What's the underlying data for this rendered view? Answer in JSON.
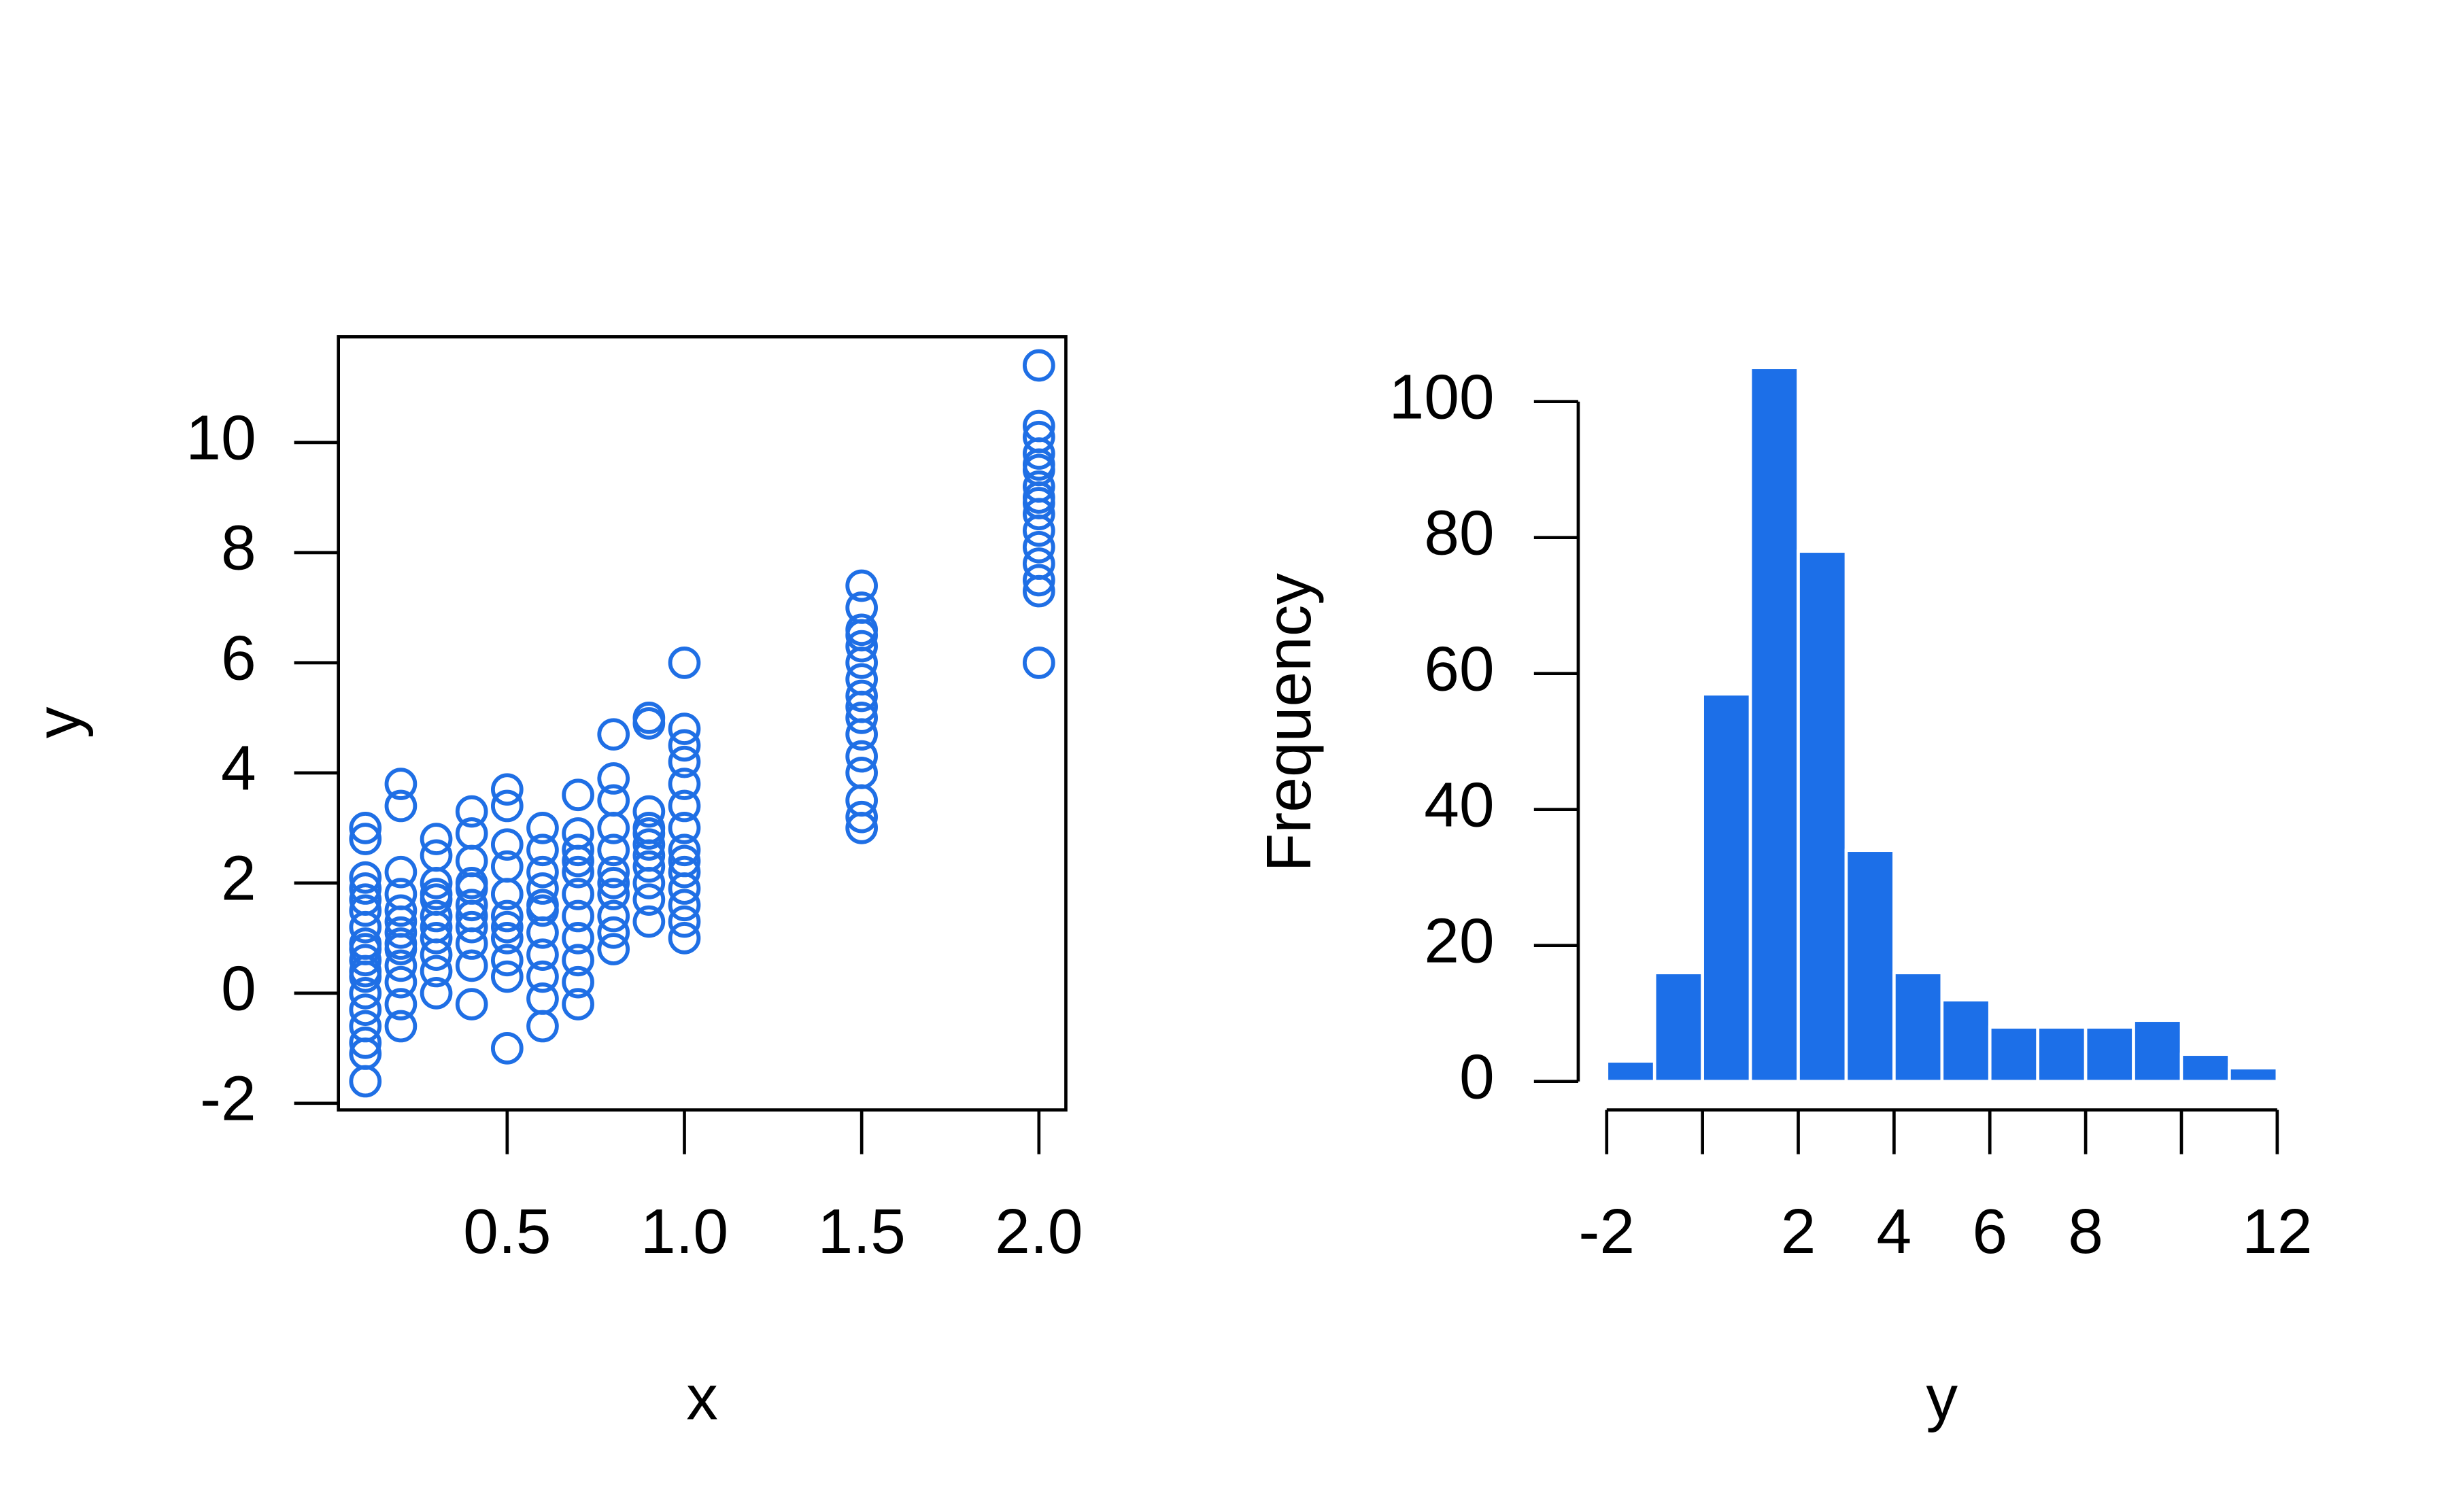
{
  "chart_data": [
    {
      "type": "scatter",
      "x_label": "x",
      "y_label": "y",
      "color": "#1f6fe5",
      "x": [
        0.1,
        0.1,
        0.1,
        0.1,
        0.1,
        0.1,
        0.1,
        0.1,
        0.1,
        0.1,
        0.1,
        0.1,
        0.1,
        0.1,
        0.1,
        0.1,
        0.1,
        0.1,
        0.2,
        0.2,
        0.2,
        0.2,
        0.2,
        0.2,
        0.2,
        0.2,
        0.2,
        0.2,
        0.2,
        0.2,
        0.2,
        0.3,
        0.3,
        0.3,
        0.3,
        0.3,
        0.3,
        0.3,
        0.3,
        0.3,
        0.3,
        0.3,
        0.4,
        0.4,
        0.4,
        0.4,
        0.4,
        0.4,
        0.4,
        0.4,
        0.4,
        0.4,
        0.4,
        0.5,
        0.5,
        0.5,
        0.5,
        0.5,
        0.5,
        0.5,
        0.5,
        0.5,
        0.5,
        0.5,
        0.6,
        0.6,
        0.6,
        0.6,
        0.6,
        0.6,
        0.6,
        0.6,
        0.6,
        0.6,
        0.6,
        0.7,
        0.7,
        0.7,
        0.7,
        0.7,
        0.7,
        0.7,
        0.7,
        0.7,
        0.7,
        0.7,
        0.8,
        0.8,
        0.8,
        0.8,
        0.8,
        0.8,
        0.8,
        0.8,
        0.8,
        0.8,
        0.8,
        0.9,
        0.9,
        0.9,
        0.9,
        0.9,
        0.9,
        0.9,
        0.9,
        0.9,
        0.9,
        0.9,
        1.0,
        1.0,
        1.0,
        1.0,
        1.0,
        1.0,
        1.0,
        1.0,
        1.0,
        1.0,
        1.0,
        1.0,
        1.0,
        1.0,
        1.5,
        1.5,
        1.5,
        1.5,
        1.5,
        1.5,
        1.5,
        1.5,
        1.5,
        1.5,
        1.5,
        1.5,
        1.5,
        1.5,
        1.5,
        1.5,
        2.0,
        2.0,
        2.0,
        2.0,
        2.0,
        2.0,
        2.0,
        2.0,
        2.0,
        2.0,
        2.0,
        2.0,
        2.0,
        2.0,
        2.0,
        2.0
      ],
      "values": [
        3.0,
        2.8,
        2.1,
        1.9,
        1.5,
        1.2,
        0.9,
        0.6,
        0.3,
        0.0,
        -0.3,
        -0.6,
        -0.9,
        -1.1,
        -1.6,
        1.7,
        0.8,
        0.4,
        3.8,
        3.4,
        2.2,
        1.8,
        1.5,
        1.1,
        0.8,
        0.5,
        0.2,
        -0.2,
        -0.6,
        1.3,
        0.9,
        2.8,
        2.5,
        2.0,
        1.7,
        1.4,
        1.0,
        0.7,
        0.4,
        0.0,
        1.2,
        1.8,
        3.3,
        2.9,
        2.4,
        2.0,
        1.6,
        1.2,
        0.9,
        0.5,
        -0.2,
        1.4,
        1.9,
        3.7,
        3.4,
        2.7,
        2.3,
        1.8,
        1.4,
        1.0,
        0.6,
        0.3,
        -1.0,
        1.2,
        3.0,
        2.6,
        2.2,
        1.9,
        1.5,
        1.1,
        0.7,
        0.3,
        -0.1,
        -0.6,
        1.6,
        3.6,
        2.9,
        2.6,
        2.2,
        1.8,
        1.4,
        1.0,
        0.6,
        0.2,
        -0.2,
        2.4,
        4.7,
        3.9,
        3.5,
        3.0,
        2.6,
        2.2,
        1.8,
        1.4,
        1.1,
        0.8,
        2.0,
        5.0,
        4.9,
        3.3,
        3.0,
        2.7,
        2.3,
        2.0,
        1.7,
        1.3,
        2.5,
        2.9,
        6.0,
        4.8,
        4.5,
        4.2,
        3.8,
        3.4,
        3.0,
        2.6,
        2.2,
        1.9,
        1.6,
        1.3,
        1.0,
        2.4,
        7.4,
        7.0,
        6.6,
        6.3,
        6.0,
        5.7,
        5.4,
        5.0,
        4.7,
        4.3,
        4.0,
        3.5,
        3.2,
        3.0,
        5.2,
        6.5,
        11.4,
        10.3,
        10.1,
        9.8,
        9.5,
        9.2,
        9.0,
        8.7,
        8.4,
        8.1,
        7.8,
        7.5,
        7.3,
        6.0,
        8.9,
        9.6
      ],
      "xlim": [
        0.024,
        2.076
      ],
      "xticks": [
        0.5,
        {
          "value": 1,
          "label": "1.0"
        },
        1.5,
        {
          "value": 2,
          "label": "2.0"
        }
      ],
      "ylim": [
        -2.12,
        11.92
      ],
      "yticks": [
        -2,
        0,
        2,
        4,
        6,
        8,
        10
      ]
    },
    {
      "type": "histogram",
      "x_label": "y",
      "y_label": "Frequency",
      "color": "#1c6fe8",
      "bins": [
        -2,
        -1,
        0,
        1,
        2,
        3,
        4,
        5,
        6,
        7,
        8,
        9,
        10,
        11,
        12
      ],
      "values": [
        3,
        16,
        57,
        105,
        78,
        34,
        16,
        12,
        8,
        8,
        8,
        9,
        4,
        2
      ],
      "xlim": [
        -2,
        12
      ],
      "xticks": [
        -2,
        {
          "value": 0,
          "label": null
        },
        2,
        4,
        6,
        8,
        {
          "value": 10,
          "label": null
        },
        12
      ],
      "ylim": [
        0,
        100
      ],
      "yticks": [
        0,
        20,
        40,
        60,
        80,
        100
      ]
    }
  ]
}
